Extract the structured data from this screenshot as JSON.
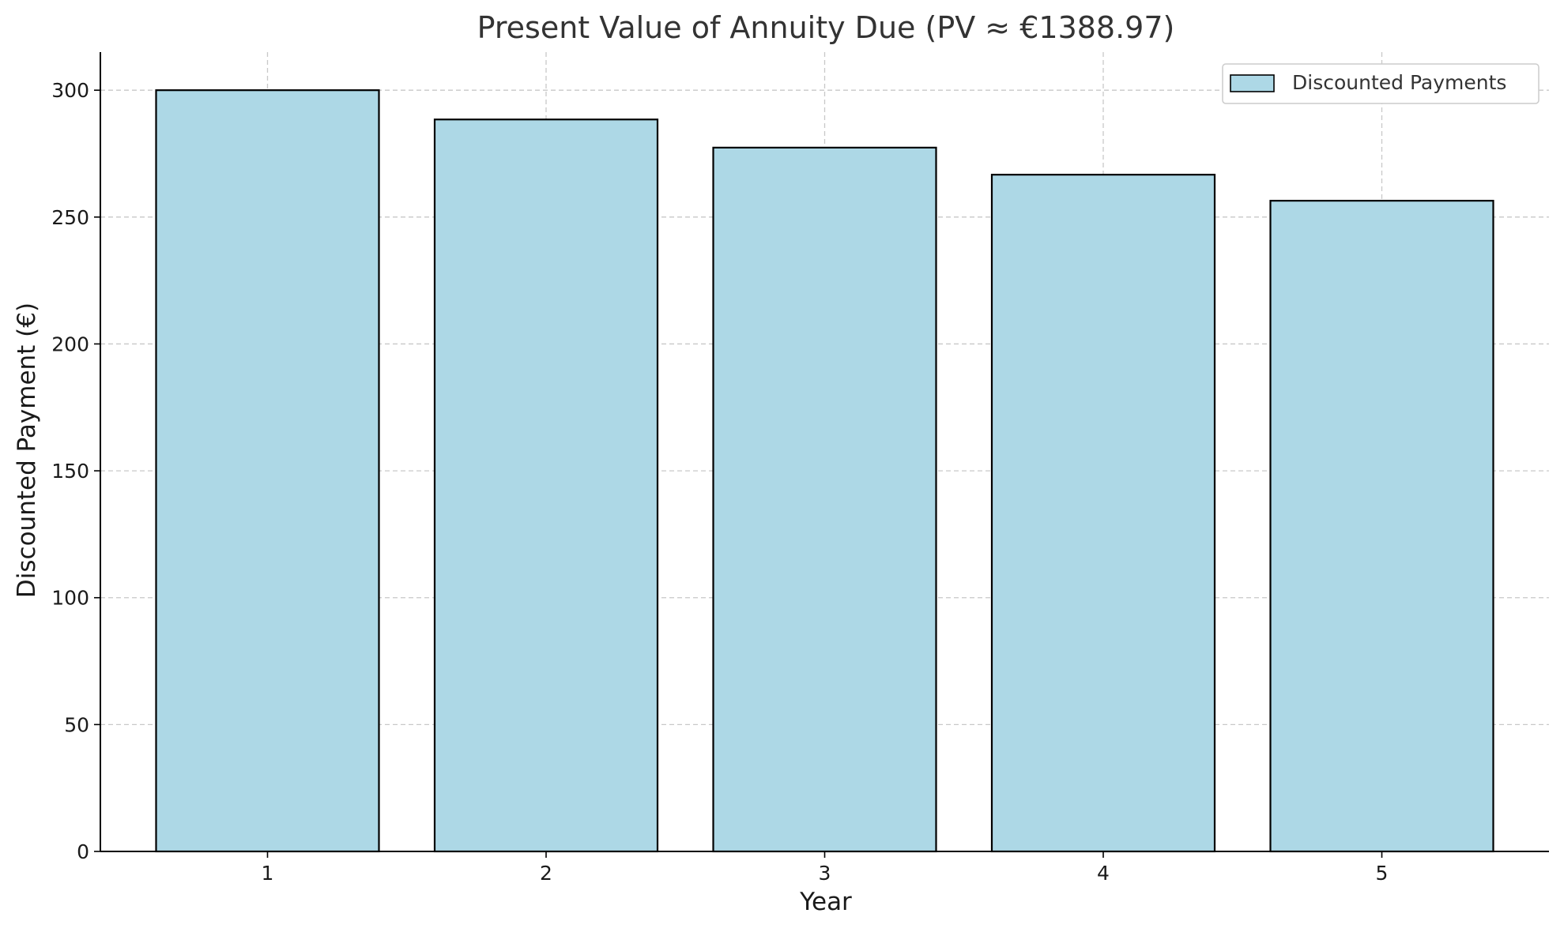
{
  "chart_data": {
    "type": "bar",
    "title": "Present Value of Annuity Due (PV ≈ €1388.97)",
    "xlabel": "Year",
    "ylabel": "Discounted Payment (€)",
    "categories": [
      "1",
      "2",
      "3",
      "4",
      "5"
    ],
    "series": [
      {
        "name": "Discounted Payments",
        "values": [
          300,
          288.46,
          277.37,
          266.7,
          256.44
        ]
      }
    ],
    "ylim": [
      0,
      315
    ],
    "yticks": [
      0,
      50,
      100,
      150,
      200,
      250,
      300
    ],
    "grid": true,
    "legend": "top-right",
    "colors": {
      "bar_fill": "#add8e6",
      "bar_edge": "#000000",
      "grid": "#c8c8c8"
    }
  }
}
